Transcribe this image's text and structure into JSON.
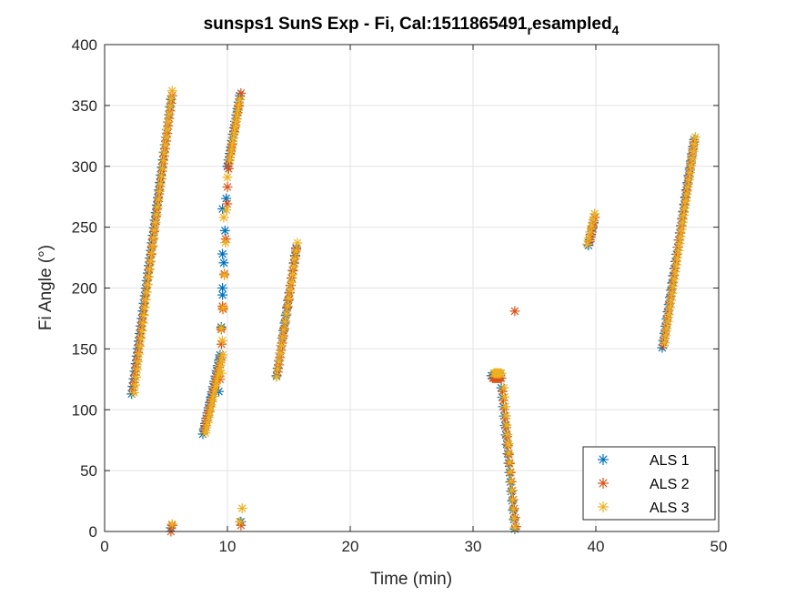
{
  "chart_data": {
    "type": "scatter",
    "title": {
      "main": "sunsps1 SunS Exp - Fi, Cal:1511865491",
      "sub1": "r",
      "mid": "esampled",
      "sub2": "4"
    },
    "xlabel": "Time (min)",
    "ylabel": "Fi Angle (°)",
    "xlim": [
      0,
      50
    ],
    "ylim": [
      0,
      400
    ],
    "xticks": [
      0,
      10,
      20,
      30,
      40,
      50
    ],
    "yticks": [
      0,
      50,
      100,
      150,
      200,
      250,
      300,
      350,
      400
    ],
    "grid": true,
    "legend_position": "bottom-right",
    "marker": "*",
    "series": [
      {
        "name": "ALS 1",
        "color": "#0072BD",
        "segments": [
          {
            "x0": 2.2,
            "y0": 113,
            "x1": 5.4,
            "y1": 355,
            "n": 40
          },
          {
            "x0": 8.0,
            "y0": 80,
            "x1": 9.4,
            "y1": 145,
            "n": 16
          },
          {
            "x0": 9.3,
            "y0": 115,
            "x1": 10.0,
            "y1": 300,
            "n": 8
          },
          {
            "x0": 10.0,
            "y0": 300,
            "x1": 11.0,
            "y1": 358,
            "n": 12
          },
          {
            "x0": 14.0,
            "y0": 128,
            "x1": 15.6,
            "y1": 233,
            "n": 18
          },
          {
            "x0": 31.5,
            "y0": 128,
            "x1": 32.2,
            "y1": 128,
            "n": 8
          },
          {
            "x0": 32.3,
            "y0": 118,
            "x1": 33.4,
            "y1": 2,
            "n": 16
          },
          {
            "x0": 39.4,
            "y0": 235,
            "x1": 39.9,
            "y1": 258,
            "n": 6
          },
          {
            "x0": 45.4,
            "y0": 151,
            "x1": 48.0,
            "y1": 322,
            "n": 30
          }
        ],
        "points": [
          [
            5.4,
            3
          ],
          [
            9.6,
            265
          ],
          [
            9.6,
            228
          ],
          [
            9.6,
            200
          ],
          [
            11.1,
            8
          ]
        ]
      },
      {
        "name": "ALS 2",
        "color": "#D95319",
        "segments": [
          {
            "x0": 2.3,
            "y0": 116,
            "x1": 5.5,
            "y1": 358,
            "n": 40
          },
          {
            "x0": 8.1,
            "y0": 83,
            "x1": 9.5,
            "y1": 143,
            "n": 16
          },
          {
            "x0": 9.4,
            "y0": 125,
            "x1": 10.1,
            "y1": 298,
            "n": 7
          },
          {
            "x0": 10.1,
            "y0": 302,
            "x1": 11.1,
            "y1": 360,
            "n": 12
          },
          {
            "x0": 14.1,
            "y0": 131,
            "x1": 15.6,
            "y1": 232,
            "n": 18
          },
          {
            "x0": 31.6,
            "y0": 126,
            "x1": 32.3,
            "y1": 126,
            "n": 8
          },
          {
            "x0": 32.4,
            "y0": 115,
            "x1": 33.5,
            "y1": 4,
            "n": 16
          },
          {
            "x0": 39.5,
            "y0": 238,
            "x1": 39.9,
            "y1": 258,
            "n": 6
          },
          {
            "x0": 45.5,
            "y0": 153,
            "x1": 48.0,
            "y1": 320,
            "n": 30
          }
        ],
        "points": [
          [
            5.4,
            0
          ],
          [
            5.5,
            5
          ],
          [
            10.0,
            283
          ],
          [
            9.6,
            185
          ],
          [
            9.5,
            166
          ],
          [
            11.1,
            5
          ],
          [
            33.4,
            181
          ]
        ]
      },
      {
        "name": "ALS 3",
        "color": "#EDB120",
        "segments": [
          {
            "x0": 2.4,
            "y0": 114,
            "x1": 5.5,
            "y1": 362,
            "n": 40
          },
          {
            "x0": 8.2,
            "y0": 81,
            "x1": 9.6,
            "y1": 145,
            "n": 16
          },
          {
            "x0": 9.5,
            "y0": 130,
            "x1": 10.0,
            "y1": 291,
            "n": 7
          },
          {
            "x0": 10.2,
            "y0": 305,
            "x1": 11.0,
            "y1": 355,
            "n": 12
          },
          {
            "x0": 14.0,
            "y0": 127,
            "x1": 15.7,
            "y1": 237,
            "n": 18
          },
          {
            "x0": 31.7,
            "y0": 130,
            "x1": 32.3,
            "y1": 130,
            "n": 8
          },
          {
            "x0": 32.5,
            "y0": 118,
            "x1": 33.4,
            "y1": 3,
            "n": 16
          },
          {
            "x0": 39.3,
            "y0": 236,
            "x1": 39.9,
            "y1": 261,
            "n": 6
          },
          {
            "x0": 45.6,
            "y0": 155,
            "x1": 48.1,
            "y1": 324,
            "n": 30
          }
        ],
        "points": [
          [
            5.5,
            6
          ],
          [
            9.7,
            258
          ],
          [
            9.5,
            167
          ],
          [
            11.2,
            19
          ],
          [
            11.0,
            8
          ],
          [
            32.9,
            72
          ]
        ]
      }
    ]
  }
}
